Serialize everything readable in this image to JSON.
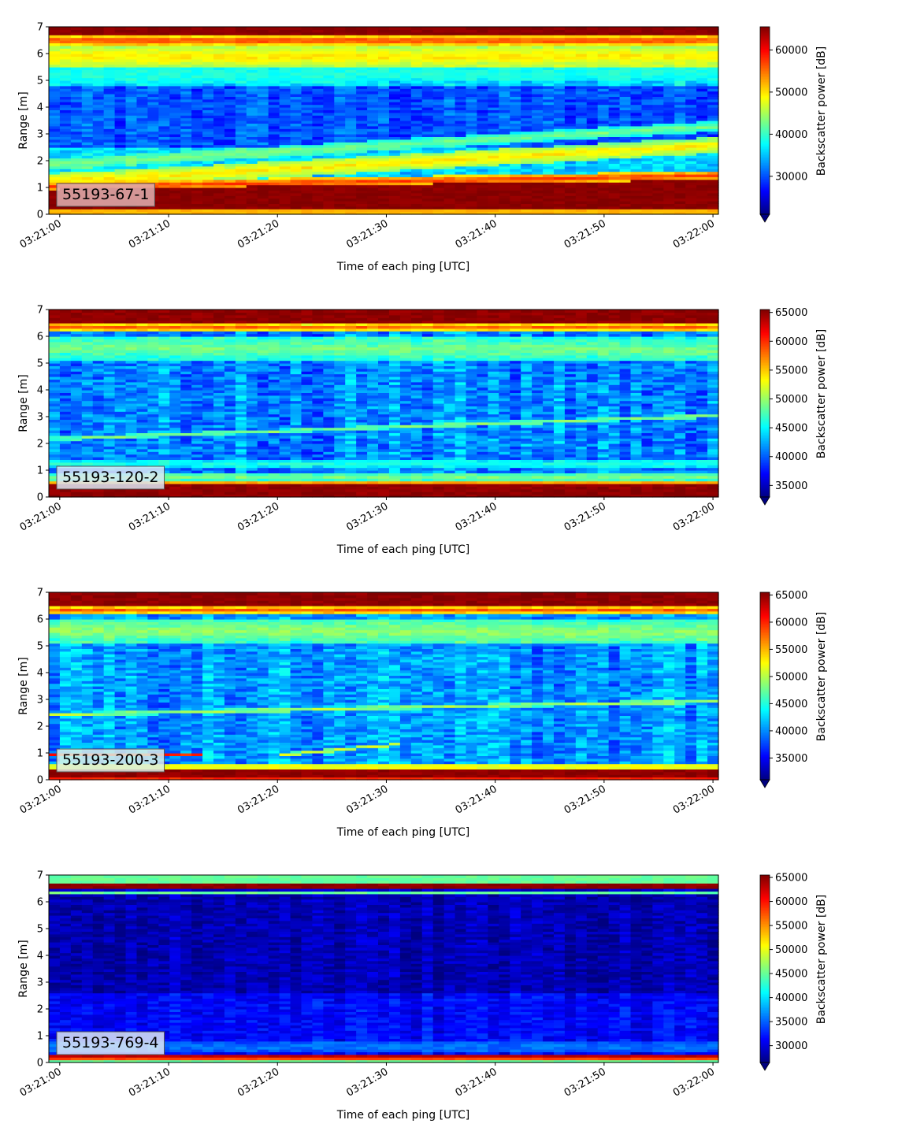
{
  "chart_data": [
    {
      "type": "heatmap",
      "tag": "55193-67-1",
      "tag_box_color": "#e0b0b0",
      "xlabel": "Time of each ping [UTC]",
      "ylabel": "Range [m]",
      "colorbar_label": "Backscatter power [dB]",
      "x_ticks": [
        "03:21:00",
        "03:21:10",
        "03:21:20",
        "03:21:30",
        "03:21:40",
        "03:21:50",
        "03:22:00"
      ],
      "y_ticks": [
        0,
        1,
        2,
        3,
        4,
        5,
        6,
        7
      ],
      "xlim": [
        "03:20:59",
        "03:22:00.5"
      ],
      "ylim": [
        0,
        7
      ],
      "clim": [
        21000,
        65500
      ],
      "colorbar_ticks": [
        30000,
        40000,
        50000,
        60000
      ],
      "colorbar_extend": "min",
      "colormap": "jet",
      "bands": [
        {
          "y0": 0.0,
          "y1": 0.25,
          "value": 52000
        },
        {
          "y0": 0.25,
          "y1_start": 0.95,
          "y1_end": 1.3,
          "value": 65000
        },
        {
          "y_start": 1.05,
          "y_end": 1.45,
          "thickness": 0.35,
          "value": 58000
        },
        {
          "y_start": 1.25,
          "y_end": 2.6,
          "thickness": 0.6,
          "value": 50000
        },
        {
          "y_start": 1.9,
          "y_end": 3.3,
          "thickness": 0.4,
          "value": 43000
        },
        {
          "y_start": 5.2,
          "y_end": 5.3,
          "thickness": 0.6,
          "value": 39000
        },
        {
          "y_start": 5.9,
          "y_end": 5.9,
          "thickness": 0.9,
          "value": 50000
        },
        {
          "y_start": 6.5,
          "y_end": 6.5,
          "thickness": 0.35,
          "value": 58000
        },
        {
          "y0": 6.7,
          "y1": 7.0,
          "value": 65000
        }
      ],
      "background": [
        {
          "y0": 0.0,
          "y1": 2.5,
          "value": 36000
        },
        {
          "y0": 2.5,
          "y1": 4.8,
          "value": 30000
        },
        {
          "y0": 4.8,
          "y1": 7.0,
          "value": 36000
        }
      ],
      "noise": 5000
    },
    {
      "type": "heatmap",
      "tag": "55193-120-2",
      "tag_box_color": "#dce8f4",
      "xlabel": "Time of each ping [UTC]",
      "ylabel": "Range [m]",
      "colorbar_label": "Backscatter power [dB]",
      "x_ticks": [
        "03:21:00",
        "03:21:10",
        "03:21:20",
        "03:21:30",
        "03:21:40",
        "03:21:50",
        "03:22:00"
      ],
      "y_ticks": [
        0,
        1,
        2,
        3,
        4,
        5,
        6,
        7
      ],
      "xlim": [
        "03:20:59",
        "03:22:00.5"
      ],
      "ylim": [
        0,
        7
      ],
      "clim": [
        33000,
        65500
      ],
      "colorbar_ticks": [
        35000,
        40000,
        45000,
        50000,
        55000,
        60000,
        65000
      ],
      "colorbar_extend": "min",
      "colormap": "jet",
      "bands": [
        {
          "y0": 0.0,
          "y1": 0.05,
          "value": 62000
        },
        {
          "y0": 0.05,
          "y1": 0.5,
          "value": 65000
        },
        {
          "y0": 0.5,
          "y1": 0.6,
          "value": 56000
        },
        {
          "y_start": 0.75,
          "y_end": 0.75,
          "thickness": 0.35,
          "value": 49000
        },
        {
          "y_start": 1.25,
          "y_end": 1.25,
          "thickness": 0.3,
          "value": 46000
        },
        {
          "y_start": 2.2,
          "y_end": 3.05,
          "thickness": 0.15,
          "value": 50000
        },
        {
          "y_start": 5.6,
          "y_end": 5.5,
          "thickness": 0.9,
          "value": 49000
        },
        {
          "y_start": 6.35,
          "y_end": 6.35,
          "thickness": 0.35,
          "value": 58000
        },
        {
          "y0": 6.55,
          "y1": 7.0,
          "value": 65000
        }
      ],
      "background": [
        {
          "y0": 0.0,
          "y1": 7.0,
          "value": 41500
        }
      ],
      "noise": 5000
    },
    {
      "type": "heatmap",
      "tag": "55193-200-3",
      "tag_box_color": "#dceee8",
      "xlabel": "Time of each ping [UTC]",
      "ylabel": "Range [m]",
      "colorbar_label": "Backscatter power [dB]",
      "x_ticks": [
        "03:21:00",
        "03:21:10",
        "03:21:20",
        "03:21:30",
        "03:21:40",
        "03:21:50",
        "03:22:00"
      ],
      "y_ticks": [
        0,
        1,
        2,
        3,
        4,
        5,
        6,
        7
      ],
      "xlim": [
        "03:20:59",
        "03:22:00.5"
      ],
      "ylim": [
        0,
        7
      ],
      "clim": [
        31000,
        65500
      ],
      "colorbar_ticks": [
        35000,
        40000,
        45000,
        50000,
        55000,
        60000,
        65000
      ],
      "colorbar_extend": "min",
      "colormap": "jet",
      "bands": [
        {
          "y0": 0.0,
          "y1": 0.1,
          "value": 60000
        },
        {
          "y0": 0.1,
          "y1": 0.45,
          "value": 65000
        },
        {
          "y0": 0.45,
          "y1": 0.6,
          "value": 52000
        },
        {
          "y_start": 0.95,
          "y_end": 0.95,
          "thickness": 0.15,
          "value": 60000,
          "t_end": 13
        },
        {
          "y_start": 0.95,
          "y_end": 1.35,
          "thickness": 0.12,
          "value": 52000,
          "t_start": 20,
          "t_end": 31
        },
        {
          "y_start": 2.45,
          "y_end": 2.95,
          "thickness": 0.15,
          "value": 50000
        },
        {
          "y_start": 5.6,
          "y_end": 5.5,
          "thickness": 0.9,
          "value": 49000
        },
        {
          "y_start": 6.35,
          "y_end": 6.35,
          "thickness": 0.35,
          "value": 58000
        },
        {
          "y0": 6.55,
          "y1": 7.0,
          "value": 65000
        }
      ],
      "background": [
        {
          "y0": 0.0,
          "y1": 7.0,
          "value": 40500
        }
      ],
      "noise": 5000
    },
    {
      "type": "heatmap",
      "tag": "55193-769-4",
      "tag_box_color": "#dce8f4",
      "xlabel": "Time of each ping [UTC]",
      "ylabel": "Range [m]",
      "colorbar_label": "Backscatter power [dB]",
      "x_ticks": [
        "03:21:00",
        "03:21:10",
        "03:21:20",
        "03:21:30",
        "03:21:40",
        "03:21:50",
        "03:22:00"
      ],
      "y_ticks": [
        0,
        1,
        2,
        3,
        4,
        5,
        6,
        7
      ],
      "xlim": [
        "03:20:59",
        "03:22:00.5"
      ],
      "ylim": [
        0,
        7
      ],
      "clim": [
        26500,
        65500
      ],
      "colorbar_ticks": [
        30000,
        35000,
        40000,
        45000,
        50000,
        55000,
        60000,
        65000
      ],
      "colorbar_extend": "min",
      "colormap": "jet",
      "bands": [
        {
          "y0": 0.0,
          "y1": 0.1,
          "value": 45000
        },
        {
          "y0": 0.1,
          "y1": 0.25,
          "value": 58000
        },
        {
          "y0": 0.25,
          "y1": 0.35,
          "value": 63000
        },
        {
          "y_start": 0.6,
          "y_end": 0.6,
          "thickness": 0.4,
          "value": 36000
        },
        {
          "y_start": 6.35,
          "y_end": 6.35,
          "thickness": 0.15,
          "value": 45000
        },
        {
          "y0": 6.5,
          "y1": 6.75,
          "value": 65000
        },
        {
          "y0": 6.75,
          "y1": 7.0,
          "value": 45000
        }
      ],
      "background": [
        {
          "y0": 0.0,
          "y1": 2.6,
          "value": 31500
        },
        {
          "y0": 2.6,
          "y1": 6.3,
          "value": 28500
        },
        {
          "y0": 6.3,
          "y1": 7.0,
          "value": 30000
        }
      ],
      "noise": 3500
    }
  ]
}
